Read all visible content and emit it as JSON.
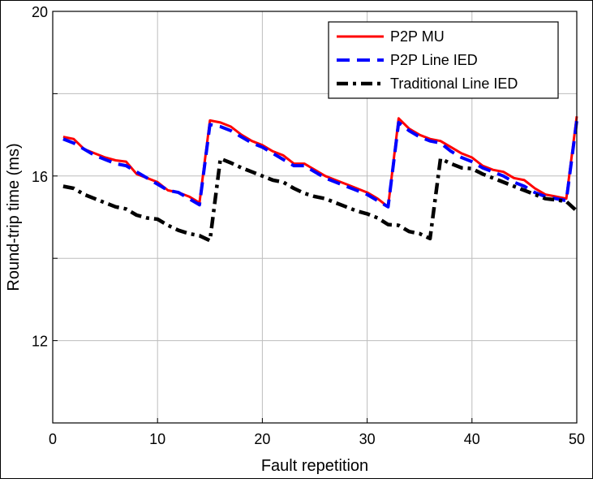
{
  "chart_data": {
    "type": "line",
    "title": "",
    "xlabel": "Fault repetition",
    "ylabel": "Round-trip time (ms)",
    "xlim": [
      0,
      50
    ],
    "ylim": [
      10,
      20
    ],
    "xticks": [
      0,
      10,
      20,
      30,
      40,
      50
    ],
    "yticks": [
      12,
      16,
      20
    ],
    "grid": true,
    "legend_position": "top-right",
    "x": [
      1,
      2,
      3,
      4,
      5,
      6,
      7,
      8,
      9,
      10,
      11,
      12,
      13,
      14,
      15,
      16,
      17,
      18,
      19,
      20,
      21,
      22,
      23,
      24,
      25,
      26,
      27,
      28,
      29,
      30,
      31,
      32,
      33,
      34,
      35,
      36,
      37,
      38,
      39,
      40,
      41,
      42,
      43,
      44,
      45,
      46,
      47,
      48,
      49,
      50
    ],
    "series": [
      {
        "name": "P2P MU",
        "color": "#ff0000",
        "dash": "solid",
        "values": [
          16.95,
          16.9,
          16.65,
          16.55,
          16.45,
          16.38,
          16.35,
          16.05,
          15.95,
          15.85,
          15.65,
          15.6,
          15.5,
          15.35,
          17.35,
          17.3,
          17.2,
          17.0,
          16.85,
          16.75,
          16.6,
          16.5,
          16.3,
          16.3,
          16.15,
          16.0,
          15.9,
          15.8,
          15.7,
          15.6,
          15.45,
          15.25,
          17.4,
          17.15,
          17.0,
          16.9,
          16.85,
          16.7,
          16.55,
          16.45,
          16.25,
          16.15,
          16.1,
          15.95,
          15.9,
          15.7,
          15.55,
          15.5,
          15.45,
          17.45
        ]
      },
      {
        "name": "P2P Line IED",
        "color": "#0000ff",
        "dash": "dashed",
        "values": [
          16.9,
          16.8,
          16.65,
          16.5,
          16.4,
          16.3,
          16.25,
          16.1,
          15.95,
          15.8,
          15.65,
          15.6,
          15.45,
          15.3,
          17.25,
          17.2,
          17.1,
          16.95,
          16.8,
          16.7,
          16.55,
          16.4,
          16.25,
          16.25,
          16.1,
          15.95,
          15.85,
          15.75,
          15.65,
          15.55,
          15.4,
          15.25,
          17.3,
          17.1,
          16.95,
          16.85,
          16.8,
          16.6,
          16.45,
          16.35,
          16.2,
          16.1,
          16.0,
          15.85,
          15.75,
          15.6,
          15.5,
          15.45,
          15.4,
          17.35
        ]
      },
      {
        "name": "Traditional Line IED",
        "color": "#000000",
        "dash": "dashdot",
        "values": [
          15.75,
          15.7,
          15.55,
          15.45,
          15.35,
          15.25,
          15.2,
          15.05,
          14.98,
          14.95,
          14.8,
          14.68,
          14.6,
          14.55,
          14.43,
          16.42,
          16.32,
          16.2,
          16.1,
          16.0,
          15.9,
          15.85,
          15.7,
          15.58,
          15.5,
          15.45,
          15.35,
          15.25,
          15.15,
          15.08,
          14.98,
          14.82,
          14.8,
          14.65,
          14.6,
          14.48,
          16.42,
          16.3,
          16.2,
          16.18,
          16.05,
          15.95,
          15.85,
          15.75,
          15.65,
          15.55,
          15.45,
          15.42,
          15.38,
          15.15
        ]
      }
    ]
  }
}
